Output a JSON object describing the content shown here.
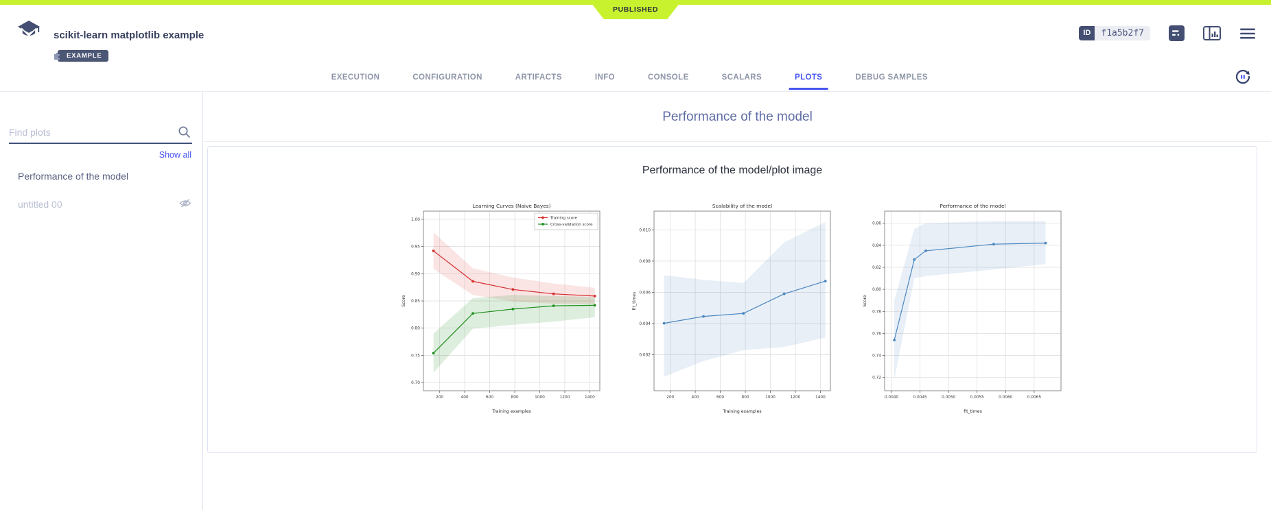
{
  "app": {
    "ribbon": "PUBLISHED",
    "title": "scikit-learn matplotlib example",
    "badge": "EXAMPLE",
    "id_label": "ID",
    "id_value": "f1a5b2f7",
    "accent_color": "#4655f2",
    "lime_color": "#c9f22e",
    "slate_color": "#434e72"
  },
  "tabs": [
    {
      "label": "EXECUTION",
      "active": false
    },
    {
      "label": "CONFIGURATION",
      "active": false
    },
    {
      "label": "ARTIFACTS",
      "active": false
    },
    {
      "label": "INFO",
      "active": false
    },
    {
      "label": "CONSOLE",
      "active": false
    },
    {
      "label": "SCALARS",
      "active": false
    },
    {
      "label": "PLOTS",
      "active": true
    },
    {
      "label": "DEBUG SAMPLES",
      "active": false
    }
  ],
  "sidebar": {
    "search_placeholder": "Find plots",
    "show_all": "Show all",
    "items": [
      {
        "label": "Performance of the model",
        "hidden": false
      },
      {
        "label": "untitled 00",
        "hidden": true
      }
    ]
  },
  "main": {
    "section_title": "Performance of the model",
    "plot_title": "Performance of the model/plot image"
  },
  "chart_data": [
    {
      "type": "line",
      "title": "Learning Curves (Naive Bayes)",
      "xlabel": "Training examples",
      "ylabel": "Score",
      "xlim": [
        70,
        1480
      ],
      "ylim": [
        0.685,
        1.015
      ],
      "xticks": [
        {
          "v": 200,
          "l": "200"
        },
        {
          "v": 400,
          "l": "400"
        },
        {
          "v": 600,
          "l": "600"
        },
        {
          "v": 800,
          "l": "800"
        },
        {
          "v": 1000,
          "l": "1000"
        },
        {
          "v": 1200,
          "l": "1200"
        },
        {
          "v": 1400,
          "l": "1400"
        }
      ],
      "yticks": [
        {
          "v": 0.7,
          "l": "0.70"
        },
        {
          "v": 0.75,
          "l": "0.75"
        },
        {
          "v": 0.8,
          "l": "0.80"
        },
        {
          "v": 0.85,
          "l": "0.85"
        },
        {
          "v": 0.9,
          "l": "0.90"
        },
        {
          "v": 0.95,
          "l": "0.95"
        },
        {
          "v": 1.0,
          "l": "1.00"
        }
      ],
      "x": [
        150,
        465,
        785,
        1110,
        1440
      ],
      "grid": true,
      "legend": true,
      "series": [
        {
          "name": "Training score",
          "color": "#d62f2f",
          "fill": "rgba(214,47,47,0.13)",
          "values": [
            0.942,
            0.886,
            0.871,
            0.863,
            0.859
          ],
          "band_upper": [
            0.976,
            0.91,
            0.893,
            0.882,
            0.874
          ],
          "band_lower": [
            0.909,
            0.861,
            0.849,
            0.845,
            0.844
          ]
        },
        {
          "name": "Cross-validation score",
          "color": "#1f8f1f",
          "fill": "rgba(31,143,31,0.15)",
          "values": [
            0.754,
            0.827,
            0.835,
            0.841,
            0.842
          ],
          "band_upper": [
            0.79,
            0.855,
            0.861,
            0.859,
            0.857
          ],
          "band_lower": [
            0.718,
            0.799,
            0.806,
            0.812,
            0.82
          ]
        }
      ]
    },
    {
      "type": "line",
      "title": "Scalability of the model",
      "xlabel": "Training examples",
      "ylabel": "fit_times",
      "xlim": [
        70,
        1480
      ],
      "ylim": [
        -0.0003,
        0.0112
      ],
      "xticks": [
        {
          "v": 200,
          "l": "200"
        },
        {
          "v": 400,
          "l": "400"
        },
        {
          "v": 600,
          "l": "600"
        },
        {
          "v": 800,
          "l": "800"
        },
        {
          "v": 1000,
          "l": "1000"
        },
        {
          "v": 1200,
          "l": "1200"
        },
        {
          "v": 1400,
          "l": "1400"
        }
      ],
      "yticks": [
        {
          "v": 0.002,
          "l": "0.002"
        },
        {
          "v": 0.004,
          "l": "0.004"
        },
        {
          "v": 0.006,
          "l": "0.006"
        },
        {
          "v": 0.008,
          "l": "0.008"
        },
        {
          "v": 0.01,
          "l": "0.010"
        }
      ],
      "x": [
        150,
        465,
        785,
        1110,
        1440
      ],
      "grid": true,
      "legend": false,
      "series": [
        {
          "name": "fit_times",
          "color": "#4a87c0",
          "fill": "rgba(74,134,192,0.13)",
          "values": [
            0.00402,
            0.00446,
            0.00465,
            0.0059,
            0.00672
          ],
          "band_upper": [
            0.0071,
            0.0068,
            0.0066,
            0.0092,
            0.0105
          ],
          "band_lower": [
            0.0006,
            0.0016,
            0.0023,
            0.0025,
            0.0031
          ]
        }
      ]
    },
    {
      "type": "line",
      "title": "Performance of the model",
      "xlabel": "fit_times",
      "ylabel": "Score",
      "xlim": [
        0.00388,
        0.00697
      ],
      "ylim": [
        0.708,
        0.871
      ],
      "xticks": [
        {
          "v": 0.004,
          "l": "0.0040"
        },
        {
          "v": 0.0045,
          "l": "0.0045"
        },
        {
          "v": 0.005,
          "l": "0.0050"
        },
        {
          "v": 0.0055,
          "l": "0.0055"
        },
        {
          "v": 0.006,
          "l": "0.0060"
        },
        {
          "v": 0.0065,
          "l": "0.0065"
        }
      ],
      "yticks": [
        {
          "v": 0.72,
          "l": "0.72"
        },
        {
          "v": 0.74,
          "l": "0.74"
        },
        {
          "v": 0.76,
          "l": "0.76"
        },
        {
          "v": 0.78,
          "l": "0.78"
        },
        {
          "v": 0.8,
          "l": "0.80"
        },
        {
          "v": 0.82,
          "l": "0.82"
        },
        {
          "v": 0.84,
          "l": "0.84"
        },
        {
          "v": 0.86,
          "l": "0.86"
        }
      ],
      "x": [
        0.00405,
        0.0044,
        0.0046,
        0.00579,
        0.0067
      ],
      "grid": true,
      "legend": false,
      "series": [
        {
          "name": "Cross-validation score",
          "color": "#4a87c0",
          "fill": "rgba(74,134,192,0.13)",
          "values": [
            0.754,
            0.827,
            0.835,
            0.841,
            0.842
          ],
          "band_upper": [
            0.79,
            0.855,
            0.86,
            0.862,
            0.862
          ],
          "band_lower": [
            0.718,
            0.81,
            0.812,
            0.818,
            0.823
          ]
        }
      ]
    }
  ]
}
